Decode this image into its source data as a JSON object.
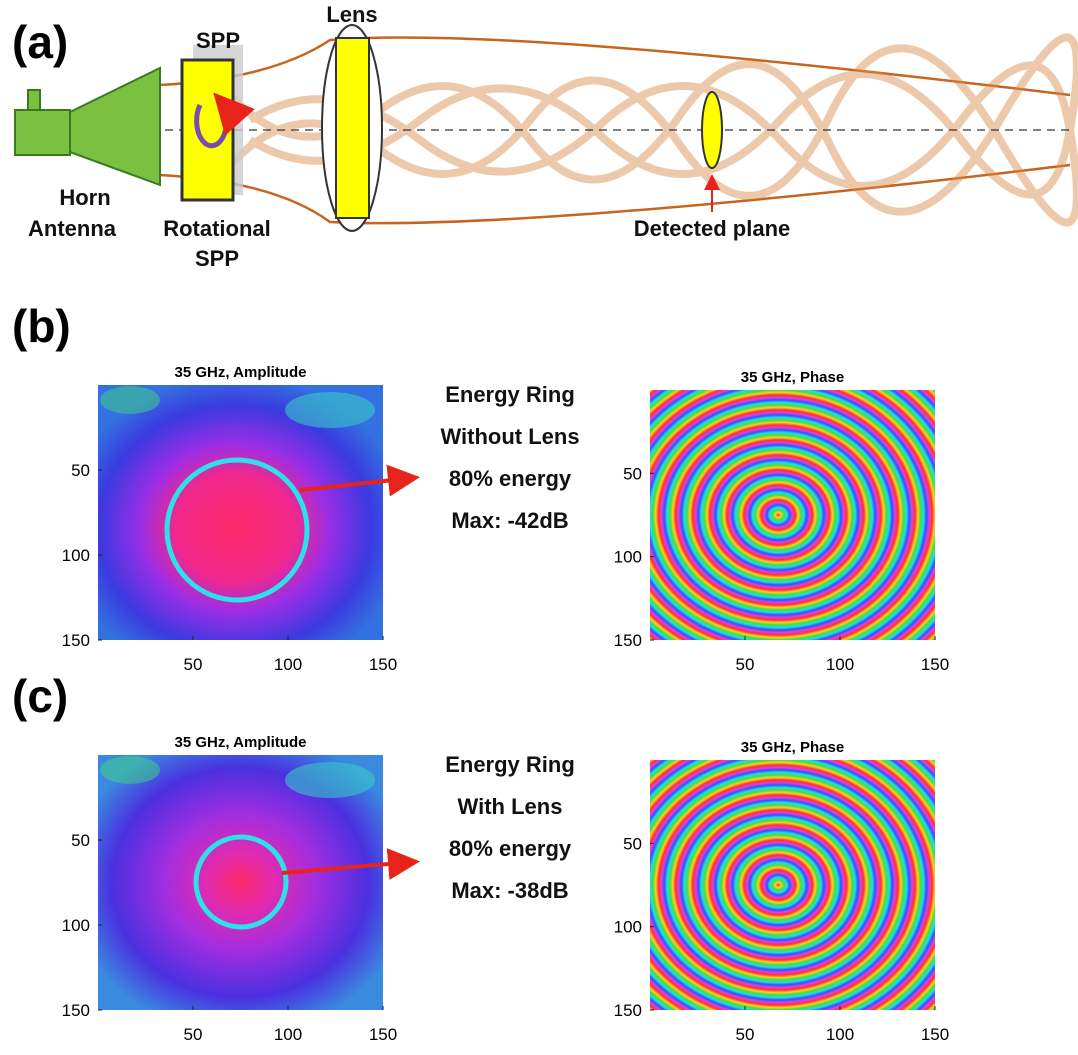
{
  "panel_a": {
    "label": "(a)",
    "spp_label": "SPP",
    "lens_label": "Lens",
    "horn_antenna": [
      "Horn",
      "Antenna"
    ],
    "rotational_spp": [
      "Rotational",
      "SPP"
    ],
    "detected_plane": "Detected plane"
  },
  "panels": [
    {
      "label": "(b)",
      "amplitude": {
        "title": "35 GHz, Amplitude",
        "xticks": [
          50,
          100,
          150
        ],
        "yticks": [
          50,
          100,
          150
        ]
      },
      "annotation": [
        "Energy Ring",
        "Without Lens",
        "80% energy",
        "Max: -42dB"
      ],
      "phase": {
        "title": "35 GHz, Phase",
        "xticks": [
          50,
          100,
          150
        ],
        "yticks": [
          50,
          100,
          150
        ]
      }
    },
    {
      "label": "(c)",
      "amplitude": {
        "title": "35 GHz, Amplitude",
        "xticks": [
          50,
          100,
          150
        ],
        "yticks": [
          50,
          100,
          150
        ]
      },
      "annotation": [
        "Energy Ring",
        "With Lens",
        "80% energy",
        "Max: -38dB"
      ],
      "phase": {
        "title": "35 GHz, Phase",
        "xticks": [
          50,
          100,
          150
        ],
        "yticks": [
          50,
          100,
          150
        ]
      }
    }
  ]
}
